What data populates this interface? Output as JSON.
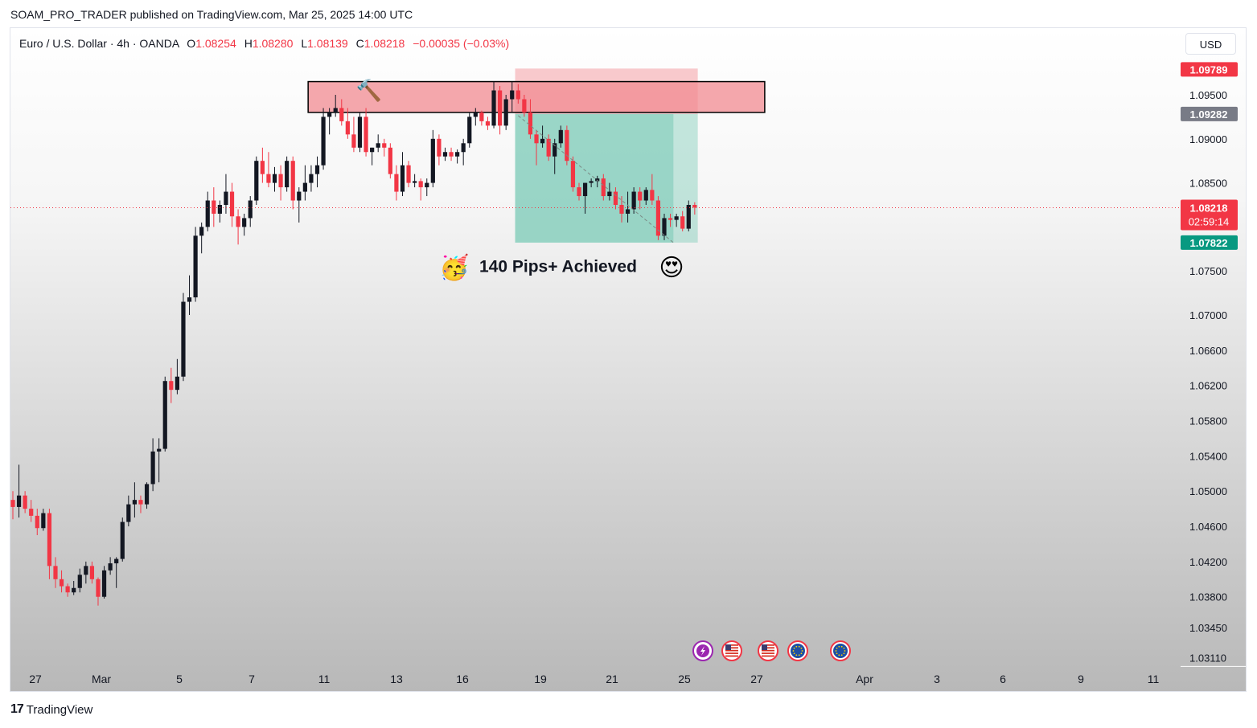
{
  "publisher": "SOAM_PRO_TRADER published on TradingView.com, Mar 25, 2025 14:00 UTC",
  "legend": {
    "symbol": "Euro / U.S. Dollar · 4h · OANDA",
    "o_label": "O",
    "o_value": "1.08254",
    "h_label": "H",
    "h_value": "1.08280",
    "l_label": "L",
    "l_value": "1.08139",
    "c_label": "C",
    "c_value": "1.08218",
    "change": "−0.00035 (−0.03%)"
  },
  "currency": "USD",
  "footer": {
    "brand": "TradingView",
    "mark": "17"
  },
  "annotation": {
    "text": "140 Pips+ Achieved",
    "left_emoji": "🥳",
    "right_emoji": "😍",
    "hammer_emoji": "🔨"
  },
  "events": [
    "flash-event-icon",
    "us-flag-icon",
    "us-flag-icon",
    "eu-flag-icon",
    "eu-flag-icon"
  ],
  "colors": {
    "up": "#131722",
    "down": "#f23645",
    "zone": "#f28b91",
    "target": "#7ecbb9",
    "stop": "#f5a7ab",
    "price_label": "#f23645",
    "target_label": "#089981",
    "entry_label": "#787b86"
  },
  "chart_data": {
    "type": "candlestick",
    "instrument": "EURUSD",
    "timeframe": "4h",
    "ylim": [
      1.029,
      1.1
    ],
    "y_ticks": [
      "1.09500",
      "1.09000",
      "1.08500",
      "1.07500",
      "1.07000",
      "1.06600",
      "1.06200",
      "1.05800",
      "1.05400",
      "1.05000",
      "1.04600",
      "1.04200",
      "1.03800",
      "1.03450",
      "1.03110"
    ],
    "x_ticks": [
      "27",
      "Mar",
      "5",
      "7",
      "11",
      "13",
      "16",
      "19",
      "21",
      "25",
      "27",
      "Apr",
      "3",
      "6",
      "9",
      "11"
    ],
    "price_labels": {
      "stop": "1.09789",
      "entry": "1.09282",
      "current": "1.08218",
      "countdown": "02:59:14",
      "target": "1.07822"
    },
    "resistance_zone": [
      1.093,
      1.0965
    ],
    "short_position": {
      "entry": 1.09282,
      "stop": 1.09789,
      "target": 1.07822
    },
    "ohlc": [
      [
        1.049,
        1.05,
        1.0468,
        1.0482
      ],
      [
        1.0482,
        1.053,
        1.047,
        1.0495
      ],
      [
        1.0495,
        1.05,
        1.0475,
        1.048
      ],
      [
        1.048,
        1.049,
        1.0465,
        1.0472
      ],
      [
        1.0472,
        1.048,
        1.045,
        1.0458
      ],
      [
        1.0458,
        1.048,
        1.0455,
        1.0475
      ],
      [
        1.0475,
        1.048,
        1.04,
        1.0415
      ],
      [
        1.0415,
        1.0425,
        1.039,
        1.04
      ],
      [
        1.04,
        1.041,
        1.0385,
        1.0392
      ],
      [
        1.0392,
        1.0395,
        1.038,
        1.0385
      ],
      [
        1.0385,
        1.0398,
        1.0382,
        1.039
      ],
      [
        1.039,
        1.0412,
        1.0385,
        1.0405
      ],
      [
        1.0405,
        1.042,
        1.0395,
        1.0415
      ],
      [
        1.0415,
        1.042,
        1.0395,
        1.04
      ],
      [
        1.04,
        1.0402,
        1.037,
        1.038
      ],
      [
        1.038,
        1.0415,
        1.0378,
        1.041
      ],
      [
        1.041,
        1.0425,
        1.0405,
        1.0418
      ],
      [
        1.0418,
        1.0425,
        1.039,
        1.0423
      ],
      [
        1.0423,
        1.047,
        1.042,
        1.0465
      ],
      [
        1.0465,
        1.0495,
        1.046,
        1.0485
      ],
      [
        1.0485,
        1.051,
        1.047,
        1.049
      ],
      [
        1.049,
        1.0495,
        1.0475,
        1.0485
      ],
      [
        1.0485,
        1.051,
        1.048,
        1.0508
      ],
      [
        1.0508,
        1.056,
        1.05,
        1.0545
      ],
      [
        1.0545,
        1.056,
        1.051,
        1.0548
      ],
      [
        1.0548,
        1.063,
        1.0545,
        1.0625
      ],
      [
        1.0625,
        1.064,
        1.06,
        1.0615
      ],
      [
        1.0615,
        1.065,
        1.061,
        1.063
      ],
      [
        1.063,
        1.0725,
        1.0625,
        1.0715
      ],
      [
        1.0715,
        1.0745,
        1.07,
        1.072
      ],
      [
        1.072,
        1.08,
        1.0715,
        1.079
      ],
      [
        1.079,
        1.0805,
        1.077,
        1.08
      ],
      [
        1.08,
        1.084,
        1.0795,
        1.083
      ],
      [
        1.083,
        1.0845,
        1.08,
        1.0815
      ],
      [
        1.0815,
        1.083,
        1.0805,
        1.0825
      ],
      [
        1.0825,
        1.086,
        1.0815,
        1.084
      ],
      [
        1.084,
        1.085,
        1.08,
        1.0812
      ],
      [
        1.0812,
        1.082,
        1.078,
        1.08
      ],
      [
        1.08,
        1.0815,
        1.079,
        1.081
      ],
      [
        1.081,
        1.0835,
        1.08,
        1.083
      ],
      [
        1.083,
        1.088,
        1.0825,
        1.0875
      ],
      [
        1.0875,
        1.089,
        1.085,
        1.086
      ],
      [
        1.086,
        1.0885,
        1.0845,
        1.085
      ],
      [
        1.085,
        1.0868,
        1.084,
        1.086
      ],
      [
        1.086,
        1.087,
        1.083,
        1.0845
      ],
      [
        1.0845,
        1.088,
        1.084,
        1.0875
      ],
      [
        1.0875,
        1.088,
        1.082,
        1.083
      ],
      [
        1.083,
        1.0845,
        1.0805,
        1.084
      ],
      [
        1.084,
        1.087,
        1.083,
        1.085
      ],
      [
        1.085,
        1.087,
        1.084,
        1.086
      ],
      [
        1.086,
        1.088,
        1.0845,
        1.087
      ],
      [
        1.087,
        1.0935,
        1.0865,
        1.0925
      ],
      [
        1.0925,
        1.0935,
        1.0905,
        1.093
      ],
      [
        1.093,
        1.095,
        1.0925,
        1.0935
      ],
      [
        1.0935,
        1.0945,
        1.0915,
        1.092
      ],
      [
        1.092,
        1.0935,
        1.09,
        1.0905
      ],
      [
        1.0905,
        1.0925,
        1.0885,
        1.089
      ],
      [
        1.089,
        1.093,
        1.0885,
        1.0925
      ],
      [
        1.0925,
        1.0935,
        1.088,
        1.0885
      ],
      [
        1.0885,
        1.089,
        1.087,
        1.089
      ],
      [
        1.089,
        1.0905,
        1.0885,
        1.0895
      ],
      [
        1.0895,
        1.09,
        1.088,
        1.089
      ],
      [
        1.089,
        1.0895,
        1.0855,
        1.086
      ],
      [
        1.086,
        1.087,
        1.083,
        1.084
      ],
      [
        1.084,
        1.0885,
        1.0835,
        1.087
      ],
      [
        1.087,
        1.0875,
        1.0845,
        1.085
      ],
      [
        1.085,
        1.086,
        1.0845,
        1.0852
      ],
      [
        1.0852,
        1.0855,
        1.083,
        1.0845
      ],
      [
        1.0845,
        1.0855,
        1.0835,
        1.085
      ],
      [
        1.085,
        1.091,
        1.0845,
        1.09
      ],
      [
        1.09,
        1.0905,
        1.087,
        1.088
      ],
      [
        1.088,
        1.089,
        1.0875,
        1.0885
      ],
      [
        1.0885,
        1.089,
        1.0875,
        1.088
      ],
      [
        1.088,
        1.0888,
        1.0872,
        1.0885
      ],
      [
        1.0885,
        1.09,
        1.087,
        1.0895
      ],
      [
        1.0895,
        1.093,
        1.089,
        1.0925
      ],
      [
        1.0925,
        1.0935,
        1.0915,
        1.093
      ],
      [
        1.093,
        1.0932,
        1.0915,
        1.092
      ],
      [
        1.092,
        1.0925,
        1.091,
        1.0915
      ],
      [
        1.0915,
        1.0965,
        1.0912,
        1.0955
      ],
      [
        1.0955,
        1.096,
        1.0905,
        1.0915
      ],
      [
        1.0915,
        1.095,
        1.091,
        1.0945
      ],
      [
        1.0945,
        1.0965,
        1.093,
        1.0955
      ],
      [
        1.0955,
        1.0962,
        1.094,
        1.0945
      ],
      [
        1.0945,
        1.095,
        1.0925,
        1.093
      ],
      [
        1.093,
        1.0945,
        1.09,
        1.0905
      ],
      [
        1.0905,
        1.091,
        1.087,
        1.0895
      ],
      [
        1.0895,
        1.0915,
        1.089,
        1.09
      ],
      [
        1.09,
        1.0905,
        1.0875,
        1.088
      ],
      [
        1.088,
        1.09,
        1.086,
        1.0895
      ],
      [
        1.0895,
        1.0915,
        1.089,
        1.091
      ],
      [
        1.091,
        1.0915,
        1.087,
        1.0875
      ],
      [
        1.0875,
        1.088,
        1.084,
        1.0845
      ],
      [
        1.0845,
        1.085,
        1.083,
        1.0835
      ],
      [
        1.0835,
        1.085,
        1.0815,
        1.085
      ],
      [
        1.085,
        1.0855,
        1.0845,
        1.0852
      ],
      [
        1.0852,
        1.0858,
        1.0845,
        1.0855
      ],
      [
        1.0855,
        1.086,
        1.083,
        1.0835
      ],
      [
        1.0835,
        1.085,
        1.083,
        1.084
      ],
      [
        1.084,
        1.0845,
        1.082,
        1.0825
      ],
      [
        1.0825,
        1.0835,
        1.0805,
        1.0815
      ],
      [
        1.0815,
        1.084,
        1.0805,
        1.082
      ],
      [
        1.082,
        1.0845,
        1.0815,
        1.084
      ],
      [
        1.084,
        1.0845,
        1.082,
        1.083
      ],
      [
        1.083,
        1.0845,
        1.0825,
        1.0842
      ],
      [
        1.0842,
        1.086,
        1.0825,
        1.083
      ],
      [
        1.083,
        1.0835,
        1.0785,
        1.079
      ],
      [
        1.079,
        1.0815,
        1.0785,
        1.081
      ],
      [
        1.081,
        1.0815,
        1.08,
        1.0808
      ],
      [
        1.0808,
        1.0815,
        1.08,
        1.0812
      ],
      [
        1.0812,
        1.0818,
        1.0795,
        1.0798
      ],
      [
        1.0798,
        1.083,
        1.0795,
        1.0825
      ],
      [
        1.0825,
        1.0828,
        1.0814,
        1.0822
      ]
    ]
  }
}
